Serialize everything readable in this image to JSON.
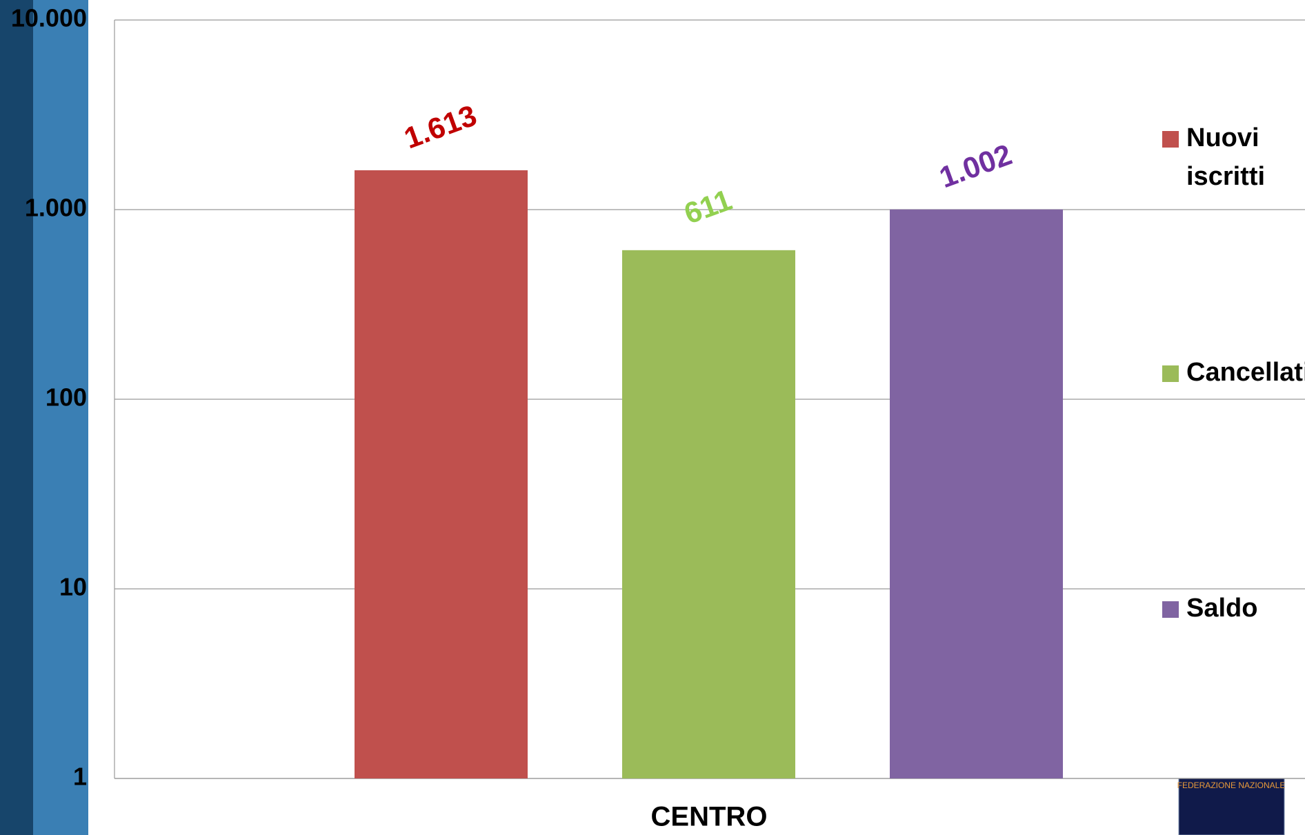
{
  "chart_data": {
    "type": "bar",
    "categories": [
      "CENTRO"
    ],
    "series": [
      {
        "name": "Nuovi iscritti",
        "color": "#c0504d",
        "label_color": "#c00000",
        "values": [
          1613
        ],
        "value_labels": [
          "1.613"
        ]
      },
      {
        "name": "Cancellati",
        "color": "#9bbb59",
        "label_color": "#92d050",
        "values": [
          611
        ],
        "value_labels": [
          "611"
        ]
      },
      {
        "name": "Saldo",
        "color": "#8064a2",
        "label_color": "#7030a0",
        "values": [
          1002
        ],
        "value_labels": [
          "1.002"
        ]
      }
    ],
    "log_scale": true,
    "ylim": [
      1,
      10000
    ],
    "yticks": [
      1,
      10,
      100,
      {
        "value": 1000,
        "label": "1.000"
      },
      {
        "value": 10000,
        "label": "10.000"
      }
    ],
    "grid": true,
    "legend": "right",
    "logo_text": "FEDERAZIONE NAZIONALE"
  }
}
